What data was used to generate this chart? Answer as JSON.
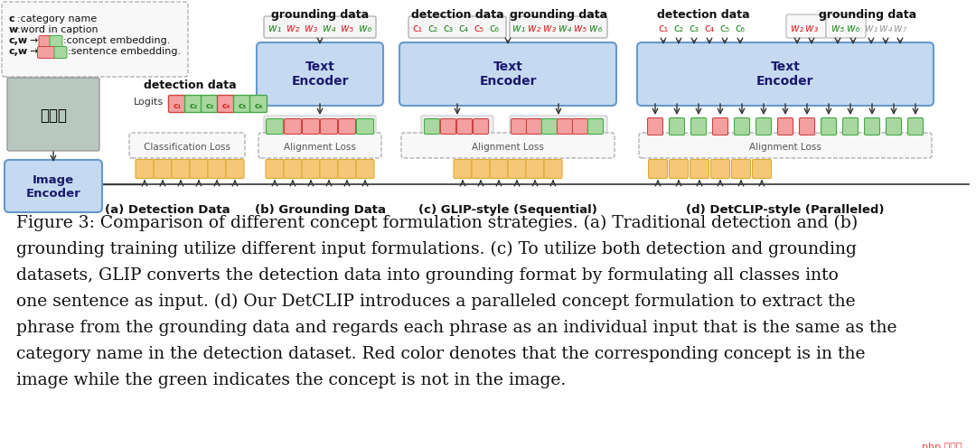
{
  "bg_color": "#ffffff",
  "colors": {
    "blue_light": "#c5daf0",
    "blue_border": "#6699cc",
    "red_feat": "#f5a0a0",
    "green_feat": "#a8d8a0",
    "orange_feat": "#f5c878",
    "dashed_border": "#aaaaaa",
    "text_red": "#dd2222",
    "text_green": "#228822",
    "text_gray": "#999999",
    "arrow": "#333333",
    "text_dark": "#111111",
    "text_blue": "#1a1a6e"
  },
  "section_labels": [
    "(a) Detection Data",
    "(b) Grounding Data",
    "(c) GLIP-style (Sequential)",
    "(d) DetCLIP-style (Paralleled)"
  ],
  "caption": "Figure 3: Comparison of different concept formulation strategies. (a) Traditional detection and (b)\ngrounding training utilize different input formulations. (c) To utilize both detection and grounding\ndatasets, GLIP converts the detection data into grounding format by formulating all classes into\none sentence as input. (d) Our DetCLIP introduces a paralleled concept formulation to extract the\nphrase from the grounding data and regards each phrase as an individual input that is the same as the\ncategory name in the detection dataset. Red color denotes that the corresponding concept is in the\nimage while the green indicates the concept is not in the image."
}
